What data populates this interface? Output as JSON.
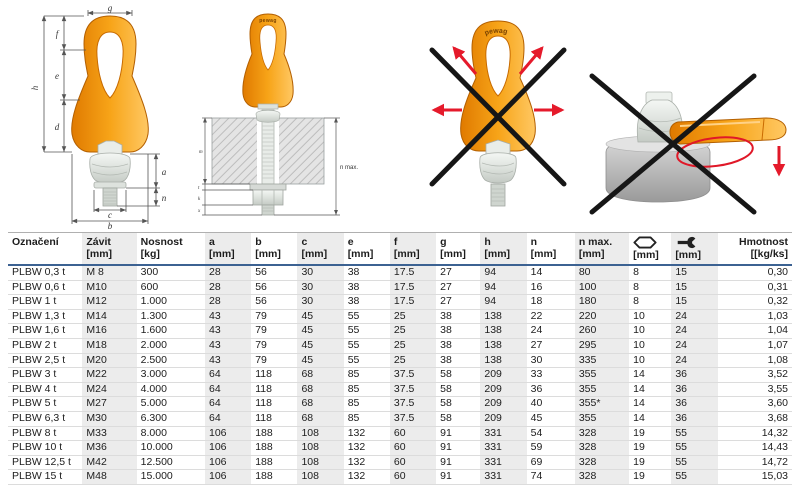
{
  "colors": {
    "orange": "#f6a01a",
    "orange_dark": "#b35f00",
    "metal": "#dde2dd",
    "prohibit_red": "#e51a2b",
    "cross_black": "#161616",
    "header_rule_blue": "#3c6292",
    "column_shade": "#ececec"
  },
  "figures": {
    "brand": "pewag",
    "fig1": {
      "labels": {
        "g": "g",
        "f": "f",
        "e": "e",
        "h": "h",
        "d": "d",
        "a": "a",
        "n": "n",
        "c": "c",
        "b": "b"
      }
    },
    "fig2": {
      "labels": {
        "m": "m",
        "t": "t",
        "k": "k",
        "x": "x",
        "n_max": "n max."
      }
    }
  },
  "table": {
    "columns": [
      {
        "label": "Označení",
        "unit": ""
      },
      {
        "label": "Závit",
        "unit": "[mm]"
      },
      {
        "label": "Nosnost",
        "unit": "[kg]"
      },
      {
        "label": "a",
        "unit": "[mm]"
      },
      {
        "label": "b",
        "unit": "[mm]"
      },
      {
        "label": "c",
        "unit": "[mm]"
      },
      {
        "label": "e",
        "unit": "[mm]"
      },
      {
        "label": "f",
        "unit": "[mm]"
      },
      {
        "label": "g",
        "unit": "[mm]"
      },
      {
        "label": "h",
        "unit": "[mm]"
      },
      {
        "label": "n",
        "unit": "[mm]"
      },
      {
        "label": "n max.",
        "unit": "[mm]"
      },
      {
        "label": "",
        "unit": "[mm]",
        "icon": "hex-socket-icon"
      },
      {
        "label": "",
        "unit": "[mm]",
        "icon": "wrench-icon"
      },
      {
        "label": "Hmotnost",
        "unit": "[[kg/ks]"
      }
    ],
    "rows": [
      [
        "PLBW 0,3 t",
        "M 8",
        "300",
        "28",
        "56",
        "30",
        "38",
        "17.5",
        "27",
        "94",
        "14",
        "80",
        "8",
        "15",
        "0,30"
      ],
      [
        "PLBW 0,6 t",
        "M10",
        "600",
        "28",
        "56",
        "30",
        "38",
        "17.5",
        "27",
        "94",
        "16",
        "100",
        "8",
        "15",
        "0,31"
      ],
      [
        "PLBW 1 t",
        "M12",
        "1.000",
        "28",
        "56",
        "30",
        "38",
        "17.5",
        "27",
        "94",
        "18",
        "180",
        "8",
        "15",
        "0,32"
      ],
      [
        "PLBW 1,3 t",
        "M14",
        "1.300",
        "43",
        "79",
        "45",
        "55",
        "25",
        "38",
        "138",
        "22",
        "220",
        "10",
        "24",
        "1,03"
      ],
      [
        "PLBW 1,6 t",
        "M16",
        "1.600",
        "43",
        "79",
        "45",
        "55",
        "25",
        "38",
        "138",
        "24",
        "260",
        "10",
        "24",
        "1,04"
      ],
      [
        "PLBW 2 t",
        "M18",
        "2.000",
        "43",
        "79",
        "45",
        "55",
        "25",
        "38",
        "138",
        "27",
        "295",
        "10",
        "24",
        "1,07"
      ],
      [
        "PLBW 2,5 t",
        "M20",
        "2.500",
        "43",
        "79",
        "45",
        "55",
        "25",
        "38",
        "138",
        "30",
        "335",
        "10",
        "24",
        "1,08"
      ],
      [
        "PLBW 3 t",
        "M22",
        "3.000",
        "64",
        "118",
        "68",
        "85",
        "37.5",
        "58",
        "209",
        "33",
        "355",
        "14",
        "36",
        "3,52"
      ],
      [
        "PLBW 4 t",
        "M24",
        "4.000",
        "64",
        "118",
        "68",
        "85",
        "37.5",
        "58",
        "209",
        "36",
        "355",
        "14",
        "36",
        "3,55"
      ],
      [
        "PLBW 5 t",
        "M27",
        "5.000",
        "64",
        "118",
        "68",
        "85",
        "37.5",
        "58",
        "209",
        "40",
        "355*",
        "14",
        "36",
        "3,60"
      ],
      [
        "PLBW 6,3 t",
        "M30",
        "6.300",
        "64",
        "118",
        "68",
        "85",
        "37.5",
        "58",
        "209",
        "45",
        "355",
        "14",
        "36",
        "3,68"
      ],
      [
        "PLBW 8 t",
        "M33",
        "8.000",
        "106",
        "188",
        "108",
        "132",
        "60",
        "91",
        "331",
        "54",
        "328",
        "19",
        "55",
        "14,32"
      ],
      [
        "PLBW 10 t",
        "M36",
        "10.000",
        "106",
        "188",
        "108",
        "132",
        "60",
        "91",
        "331",
        "59",
        "328",
        "19",
        "55",
        "14,43"
      ],
      [
        "PLBW 12,5 t",
        "M42",
        "12.500",
        "106",
        "188",
        "108",
        "132",
        "60",
        "91",
        "331",
        "69",
        "328",
        "19",
        "55",
        "14,72"
      ],
      [
        "PLBW 15 t",
        "M48",
        "15.000",
        "106",
        "188",
        "108",
        "132",
        "60",
        "91",
        "331",
        "74",
        "328",
        "19",
        "55",
        "15,03"
      ]
    ]
  }
}
